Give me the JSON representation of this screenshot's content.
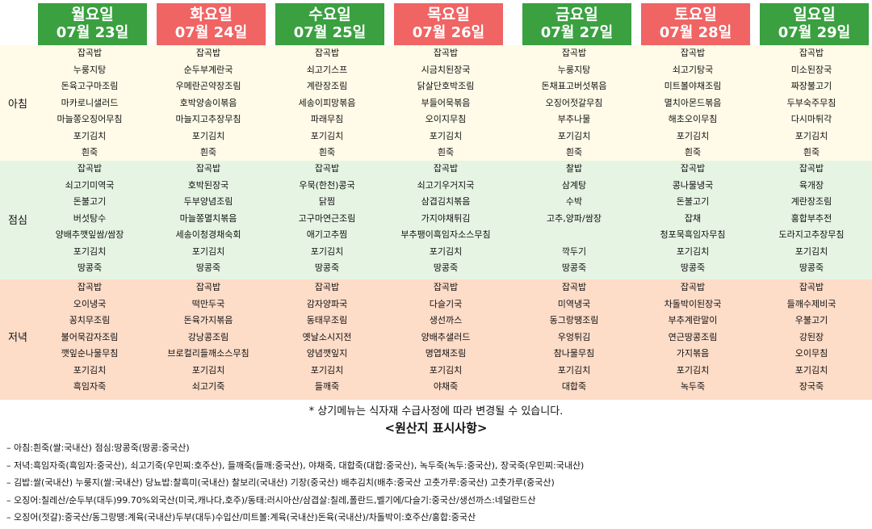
{
  "days": [
    {
      "name": "월요일",
      "date": "07월 23일",
      "color": "#3aa040"
    },
    {
      "name": "화요일",
      "date": "07월 24일",
      "color": "#f06464"
    },
    {
      "name": "수요일",
      "date": "07월 25일",
      "color": "#3aa040"
    },
    {
      "name": "목요일",
      "date": "07월 26일",
      "color": "#f06464"
    },
    {
      "name": "금요일",
      "date": "07월 27일",
      "color": "#3aa040"
    },
    {
      "name": "토요일",
      "date": "07월 28일",
      "color": "#f06464"
    },
    {
      "name": "일요일",
      "date": "07월 29일",
      "color": "#3aa040"
    }
  ],
  "meals": [
    {
      "label": "아침",
      "bg": "#fffbe8",
      "menus": [
        [
          "잡곡밥",
          "누룽지탕",
          "돈육고구마조림",
          "마카로니샐러드",
          "마늘쫑오징어무침",
          "포기김치",
          "흰죽"
        ],
        [
          "잡곡밥",
          "순두부계란국",
          "우메란곤약장조림",
          "호박양송이볶음",
          "마늘지고추장무침",
          "포기김치",
          "흰죽"
        ],
        [
          "잡곡밥",
          "쇠고기스프",
          "계란장조림",
          "세송이피망볶음",
          "파래무침",
          "포기김치",
          "흰죽"
        ],
        [
          "잡곡밥",
          "시금치된장국",
          "닭살단호박조림",
          "부들어묵볶음",
          "오이지무침",
          "포기김치",
          "흰죽"
        ],
        [
          "잡곡밥",
          "누룽지탕",
          "돈채표고버섯볶음",
          "오징어젓갈무침",
          "부추나물",
          "포기김치",
          "흰죽"
        ],
        [
          "잡곡밥",
          "쇠고기탕국",
          "미트볼야채조림",
          "멸치아몬드볶음",
          "해초오이무침",
          "포기김치",
          "흰죽"
        ],
        [
          "잡곡밥",
          "미소된장국",
          "짜장불고기",
          "두부숙주무침",
          "다시마튀각",
          "포기김치",
          "흰죽"
        ]
      ]
    },
    {
      "label": "점심",
      "bg": "#e6f4e4",
      "menus": [
        [
          "잡곡밥",
          "쇠고기미역국",
          "돈불고기",
          "버섯탕수",
          "양배추깻잎쌈/쌈장",
          "포기김치",
          "땅콩죽"
        ],
        [
          "잡곡밥",
          "호박된장국",
          "두부양념조림",
          "마늘쫑멸치볶음",
          "세송이청경채숙회",
          "포기김치",
          "땅콩죽"
        ],
        [
          "잡곡밥",
          "우묵(한천)콩국",
          "닭찜",
          "고구마연근조림",
          "애기고추찜",
          "포기김치",
          "땅콩죽"
        ],
        [
          "잡곡밥",
          "쇠고기우거지국",
          "삼겹김치볶음",
          "가지야채튀김",
          "부추팽이흑임자소스무침",
          "포기김치",
          "땅콩죽"
        ],
        [
          "찰밥",
          "삼계탕",
          "수박",
          "고추,양파/쌈장",
          "",
          "깍두기",
          "땅콩죽"
        ],
        [
          "잡곡밥",
          "콩나물냉국",
          "돈불고기",
          "잡채",
          "청포묵흑임자무침",
          "포기김치",
          "땅콩죽"
        ],
        [
          "잡곡밥",
          "육개장",
          "계란장조림",
          "홍합부추전",
          "도라지고추장무침",
          "포기김치",
          "땅콩죽"
        ]
      ]
    },
    {
      "label": "저녁",
      "bg": "#fddcc8",
      "menus": [
        [
          "잡곡밥",
          "오이냉국",
          "꽁치무조림",
          "불어묵감자조림",
          "깻잎순나물무침",
          "포기김치",
          "흑임자죽"
        ],
        [
          "잡곡밥",
          "떡만두국",
          "돈육가지볶음",
          "강낭콩조림",
          "브로컬리들깨소스무침",
          "포기김치",
          "쇠고기죽"
        ],
        [
          "잡곡밥",
          "감자양파국",
          "동태무조림",
          "옛날소시지전",
          "양념깻잎지",
          "포기김치",
          "들깨죽"
        ],
        [
          "잡곡밥",
          "다슬기국",
          "생선까스",
          "양배추샐러드",
          "명엽채조림",
          "포기김치",
          "야채죽"
        ],
        [
          "잡곡밥",
          "미역냉국",
          "동그랑땡조림",
          "우엉튀김",
          "참나물무침",
          "포기김치",
          "대합죽"
        ],
        [
          "잡곡밥",
          "차돌박이된장국",
          "부추계란말이",
          "연근땅콩조림",
          "가지볶음",
          "포기김치",
          "녹두죽"
        ],
        [
          "잡곡밥",
          "들깨수제비국",
          "우불고기",
          "강된장",
          "오이무침",
          "포기김치",
          "장국죽"
        ]
      ]
    }
  ],
  "note": "* 상기메뉴는 식자재 수급사정에 따라 변경될 수 있습니다.",
  "origin": {
    "title": "<원산지 표시사항>",
    "lines": [
      "– 아침:흰죽(쌀:국내산) 점심:땅콩죽(땅콩:중국산)",
      "– 저녁:흑임자죽(흑임자:중국산), 쇠고기죽(우민찌:호주산), 들깨죽(들깨:중국산), 야채죽, 대합죽(대합:중국산), 녹두죽(녹두:중국산), 장국죽(우민찌:국내산)",
      "– 김밥:쌀(국내산) 누룽지(쌀:국내산) 당뇨밥:찰흑미(국내산) 찰보리(국내산) 기장(중국산) 배추김치(배추:중국산 고춧가루:중국산) 고춧가루(중국산)",
      "– 오징어:칠레산/순두부(대두)99.70%외국산(미국,캐나다,호주)/동태:러시아산/삼겹살:칠레,폴란드,벨기에/다슬기:중국산/생선까스:네덜란드산",
      "– 오징어(젓갈):중국산/동그랑땡:계육(국내산)두부(대두)수입산/미트볼:계육(국내산)돈육(국내산)/차돌박이:호주산/홍합:중국산"
    ]
  }
}
